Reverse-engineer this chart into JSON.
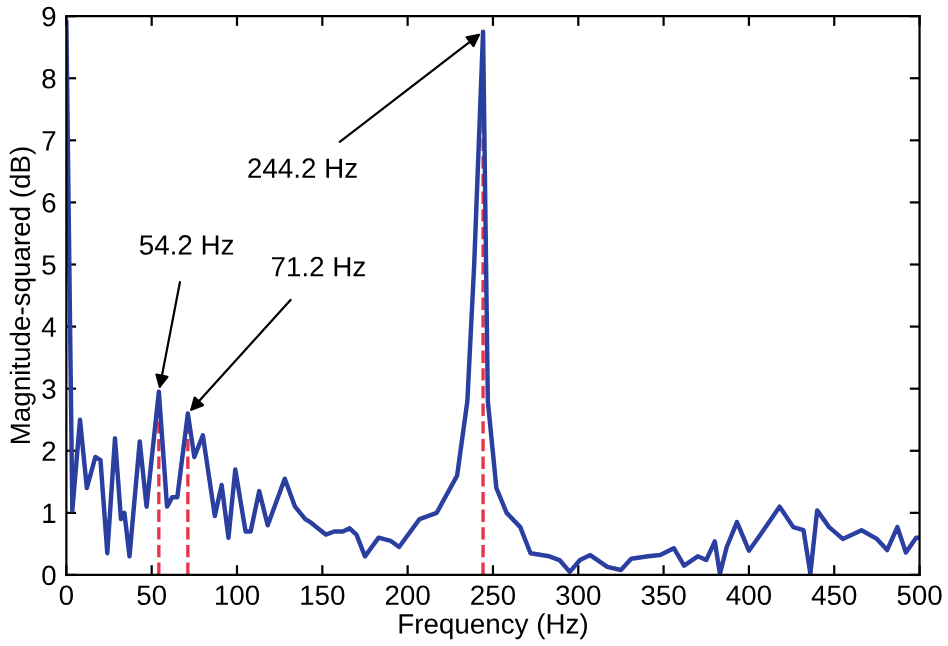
{
  "chart_data": {
    "type": "line",
    "xlabel": "Frequency (Hz)",
    "ylabel": "Magnitude-squared (dB)",
    "xlim": [
      0,
      500
    ],
    "ylim": [
      0,
      9
    ],
    "xticks": [
      0,
      50,
      100,
      150,
      200,
      250,
      300,
      350,
      400,
      450,
      500
    ],
    "yticks": [
      0,
      1,
      2,
      3,
      4,
      5,
      6,
      7,
      8,
      9
    ],
    "grid": false,
    "legend": false,
    "marker": "none",
    "line_style": "solid",
    "series": [
      {
        "color": "#2b3fa0",
        "x": [
          0,
          3.5,
          8,
          12,
          17,
          20,
          24,
          28.5,
          32,
          34,
          37,
          43,
          47,
          54.2,
          59,
          62,
          65,
          71.2,
          75,
          80,
          87,
          91,
          95,
          99,
          105,
          108,
          113,
          118,
          128,
          134,
          140,
          143,
          152,
          157,
          162,
          166,
          170,
          175,
          183,
          190,
          195,
          207,
          217,
          229,
          235,
          239,
          244.2,
          247,
          252,
          258,
          266,
          272,
          283,
          289,
          295,
          301,
          307,
          317,
          325,
          331,
          341,
          348,
          356,
          362,
          370,
          375,
          380,
          383,
          387,
          393,
          400,
          407,
          418,
          426,
          432,
          436,
          440,
          447,
          455,
          466,
          475,
          481,
          487,
          492,
          498,
          500
        ],
        "values": [
          8.9,
          1.04,
          2.5,
          1.4,
          1.9,
          1.85,
          0.35,
          2.2,
          0.9,
          1.0,
          0.3,
          2.15,
          1.1,
          2.95,
          1.1,
          1.25,
          1.25,
          2.6,
          1.9,
          2.25,
          0.95,
          1.45,
          0.6,
          1.7,
          0.7,
          0.7,
          1.35,
          0.8,
          1.55,
          1.1,
          0.9,
          0.85,
          0.65,
          0.7,
          0.7,
          0.75,
          0.65,
          0.3,
          0.6,
          0.55,
          0.45,
          0.9,
          1.0,
          1.6,
          2.8,
          5.0,
          8.75,
          2.8,
          1.4,
          1.0,
          0.77,
          0.35,
          0.3,
          0.24,
          0.05,
          0.24,
          0.32,
          0.13,
          0.08,
          0.26,
          0.3,
          0.32,
          0.43,
          0.15,
          0.3,
          0.24,
          0.54,
          0.02,
          0.45,
          0.85,
          0.39,
          0.66,
          1.1,
          0.77,
          0.72,
          0.02,
          1.04,
          0.77,
          0.58,
          0.72,
          0.58,
          0.4,
          0.77,
          0.36,
          0.6,
          0.6
        ]
      }
    ],
    "ref_lines": [
      {
        "axis": "x",
        "value": 54.2,
        "color": "#e8344a",
        "line_style": "dashed"
      },
      {
        "axis": "x",
        "value": 71.2,
        "color": "#e8344a",
        "line_style": "dashed"
      },
      {
        "axis": "x",
        "value": 244.2,
        "color": "#e8344a",
        "line_style": "dashed"
      }
    ],
    "annotations": [
      {
        "text": "54.2 Hz",
        "x": 54.2,
        "y": 2.95
      },
      {
        "text": "71.2 Hz",
        "x": 71.2,
        "y": 2.6
      },
      {
        "text": "244.2 Hz",
        "x": 244.2,
        "y": 8.75
      }
    ]
  }
}
